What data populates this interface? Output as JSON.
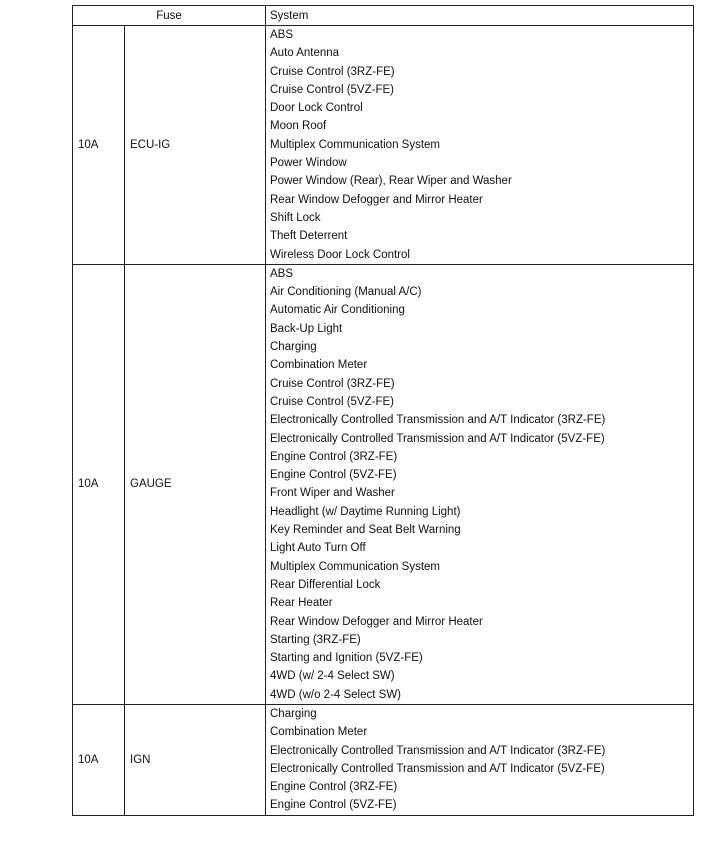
{
  "header": {
    "fuse": "Fuse",
    "system": "System"
  },
  "rows": [
    {
      "amp": "10A",
      "name": "ECU-IG",
      "systems": [
        "ABS",
        "Auto Antenna",
        "Cruise Control (3RZ-FE)",
        "Cruise Control (5VZ-FE)",
        "Door Lock Control",
        "Moon Roof",
        "Multiplex Communication System",
        "Power Window",
        "Power Window (Rear), Rear Wiper and Washer",
        "Rear Window Defogger and Mirror Heater",
        "Shift Lock",
        "Theft Deterrent",
        "Wireless Door Lock Control"
      ]
    },
    {
      "amp": "10A",
      "name": "GAUGE",
      "systems": [
        "ABS",
        "Air Conditioning (Manual A/C)",
        "Automatic Air Conditioning",
        "Back-Up Light",
        "Charging",
        "Combination Meter",
        "Cruise Control (3RZ-FE)",
        "Cruise Control (5VZ-FE)",
        "Electronically Controlled Transmission and A/T Indicator (3RZ-FE)",
        "Electronically Controlled Transmission and A/T Indicator (5VZ-FE)",
        "Engine Control (3RZ-FE)",
        "Engine Control (5VZ-FE)",
        "Front Wiper and Washer",
        "Headlight (w/ Daytime Running Light)",
        "Key Reminder and Seat Belt Warning",
        "Light Auto Turn Off",
        "Multiplex Communication System",
        "Rear Differential Lock",
        "Rear Heater",
        "Rear Window Defogger and Mirror Heater",
        "Starting (3RZ-FE)",
        "Starting and Ignition (5VZ-FE)",
        "4WD (w/ 2-4 Select SW)",
        "4WD (w/o 2-4 Select SW)"
      ]
    },
    {
      "amp": "10A",
      "name": "IGN",
      "systems": [
        "Charging",
        "Combination Meter",
        "Electronically Controlled Transmission and A/T Indicator (3RZ-FE)",
        "Electronically Controlled Transmission and A/T Indicator (5VZ-FE)",
        "Engine Control (3RZ-FE)",
        "Engine Control (5VZ-FE)"
      ]
    }
  ]
}
